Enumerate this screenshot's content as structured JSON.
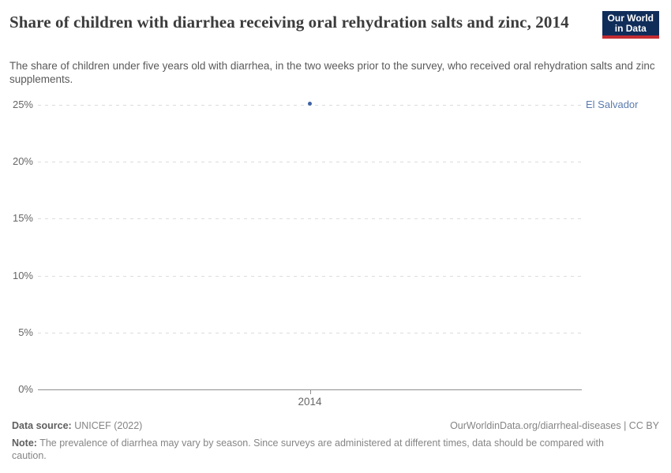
{
  "header": {
    "title": "Share of children with diarrhea receiving oral rehydration salts and zinc, 2014",
    "subtitle": "The share of children under five years old with diarrhea, in the two weeks prior to the survey, who received oral rehydration salts and zinc supplements.",
    "logo": {
      "line1": "Our World",
      "line2": "in Data"
    }
  },
  "chart_data": {
    "type": "scatter",
    "title": "Share of children with diarrhea receiving oral rehydration salts and zinc, 2014",
    "x": [
      2014
    ],
    "xticks": [
      "2014"
    ],
    "yticks": [
      "0%",
      "5%",
      "10%",
      "15%",
      "20%",
      "25%"
    ],
    "ylim": [
      0,
      25
    ],
    "xlabel": "",
    "ylabel": "",
    "grid": "horizontal-dashed",
    "legend_position": "inline-right",
    "series": [
      {
        "name": "El Salvador",
        "values": [
          25.1
        ],
        "color": "#3d62a8",
        "label_color": "#5b7bae"
      }
    ]
  },
  "footer": {
    "data_source_label": "Data source:",
    "data_source_value": " UNICEF (2022)",
    "attribution": "OurWorldinData.org/diarrheal-diseases | CC BY",
    "note_label": "Note:",
    "note_text": " The prevalence of diarrhea may vary by season. Since surveys are administered at different times, data should be compared with caution."
  },
  "colors": {
    "logo_background": "#102d5a",
    "logo_red_strip": "#c42c31",
    "point": "#3d62a8",
    "entity_label": "#5b7bae",
    "gridline": "#dcdcdc",
    "axis": "#8f8f8f"
  }
}
